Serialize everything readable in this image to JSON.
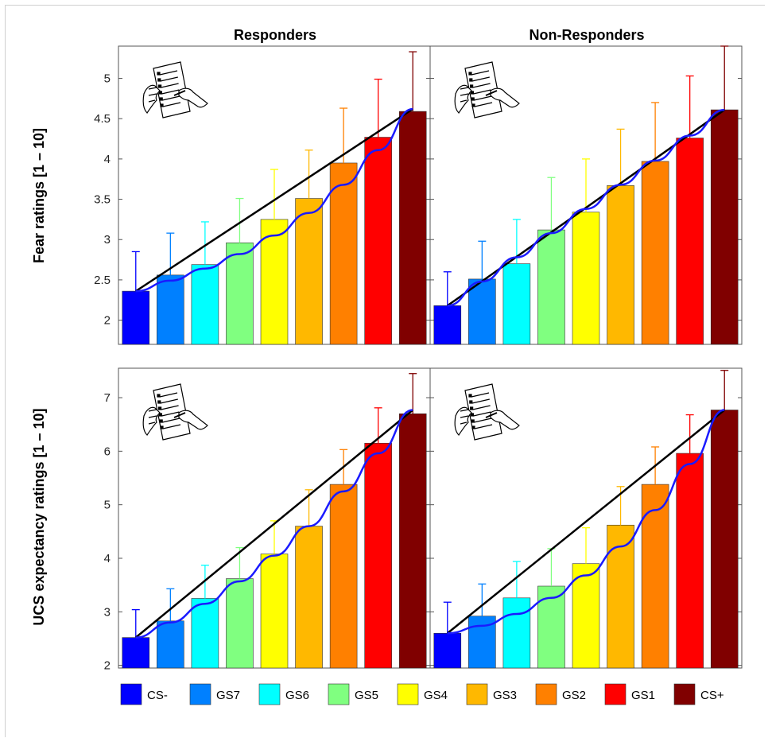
{
  "categories": [
    "CS-",
    "GS7",
    "GS6",
    "GS5",
    "GS4",
    "GS3",
    "GS2",
    "GS1",
    "CS+"
  ],
  "colors": [
    "#0000ff",
    "#0080ff",
    "#00ffff",
    "#80ff80",
    "#ffff00",
    "#ffb800",
    "#ff8000",
    "#ff0000",
    "#800000"
  ],
  "line_colors": {
    "linear": "#000000",
    "fit": "#1a1aff"
  },
  "legend": {
    "placement": "bottom",
    "labels": [
      "CS-",
      "GS7",
      "GS6",
      "GS5",
      "GS4",
      "GS3",
      "GS2",
      "GS1",
      "CS+"
    ]
  },
  "column_titles": [
    "Responders",
    "Non-Responders"
  ],
  "row_labels": [
    "Fear ratings [1 – 10]",
    "UCS expectancy ratings [1 – 10]"
  ],
  "icon": "questionnaire-hand-writing-icon",
  "chart_data": [
    {
      "type": "bar",
      "title": "Responders",
      "ylabel": "Fear ratings [1 – 10]",
      "ylim": [
        1.7,
        5.4
      ],
      "yticks": [
        2,
        2.5,
        3,
        3.5,
        4,
        4.5,
        5
      ],
      "categories": [
        "CS-",
        "GS7",
        "GS6",
        "GS5",
        "GS4",
        "GS3",
        "GS2",
        "GS1",
        "CS+"
      ],
      "values": [
        2.36,
        2.56,
        2.69,
        2.96,
        3.25,
        3.51,
        3.95,
        4.27,
        4.59
      ],
      "error": [
        0.49,
        0.52,
        0.53,
        0.55,
        0.62,
        0.6,
        0.68,
        0.72,
        0.74
      ],
      "linear": [
        2.36,
        4.62
      ],
      "fit": [
        2.36,
        2.49,
        2.64,
        2.82,
        3.05,
        3.33,
        3.68,
        4.11,
        4.62
      ]
    },
    {
      "type": "bar",
      "title": "Non-Responders",
      "ylim": [
        1.7,
        5.4
      ],
      "yticks": [
        2,
        2.5,
        3,
        3.5,
        4,
        4.5,
        5
      ],
      "categories": [
        "CS-",
        "GS7",
        "GS6",
        "GS5",
        "GS4",
        "GS3",
        "GS2",
        "GS1",
        "CS+"
      ],
      "values": [
        2.18,
        2.51,
        2.7,
        3.12,
        3.34,
        3.67,
        3.97,
        4.26,
        4.61
      ],
      "error": [
        0.42,
        0.47,
        0.55,
        0.65,
        0.66,
        0.7,
        0.73,
        0.77,
        0.79
      ],
      "linear": [
        2.18,
        4.61
      ],
      "fit": [
        2.18,
        2.48,
        2.78,
        3.08,
        3.38,
        3.68,
        3.98,
        4.29,
        4.61
      ]
    },
    {
      "type": "bar",
      "title": "",
      "ylabel": "UCS expectancy ratings [1 – 10]",
      "ylim": [
        1.95,
        7.55
      ],
      "yticks": [
        2,
        3,
        4,
        5,
        6,
        7
      ],
      "categories": [
        "CS-",
        "GS7",
        "GS6",
        "GS5",
        "GS4",
        "GS3",
        "GS2",
        "GS1",
        "CS+"
      ],
      "values": [
        2.52,
        2.83,
        3.25,
        3.62,
        4.08,
        4.6,
        5.38,
        6.15,
        6.7
      ],
      "error": [
        0.52,
        0.6,
        0.62,
        0.58,
        0.62,
        0.68,
        0.65,
        0.66,
        0.75
      ],
      "linear": [
        2.52,
        6.77
      ],
      "fit": [
        2.52,
        2.8,
        3.15,
        3.57,
        4.05,
        4.6,
        5.25,
        5.96,
        6.77
      ]
    },
    {
      "type": "bar",
      "title": "",
      "ylim": [
        1.95,
        7.55
      ],
      "yticks": [
        2,
        3,
        4,
        5,
        6,
        7
      ],
      "categories": [
        "CS-",
        "GS7",
        "GS6",
        "GS5",
        "GS4",
        "GS3",
        "GS2",
        "GS1",
        "CS+"
      ],
      "values": [
        2.6,
        2.92,
        3.26,
        3.48,
        3.9,
        4.62,
        5.38,
        5.96,
        6.77
      ],
      "error": [
        0.58,
        0.6,
        0.68,
        0.7,
        0.67,
        0.72,
        0.7,
        0.72,
        0.74
      ],
      "linear": [
        2.6,
        6.77
      ],
      "fit": [
        2.6,
        2.74,
        2.96,
        3.26,
        3.68,
        4.22,
        4.9,
        5.76,
        6.77
      ]
    }
  ]
}
